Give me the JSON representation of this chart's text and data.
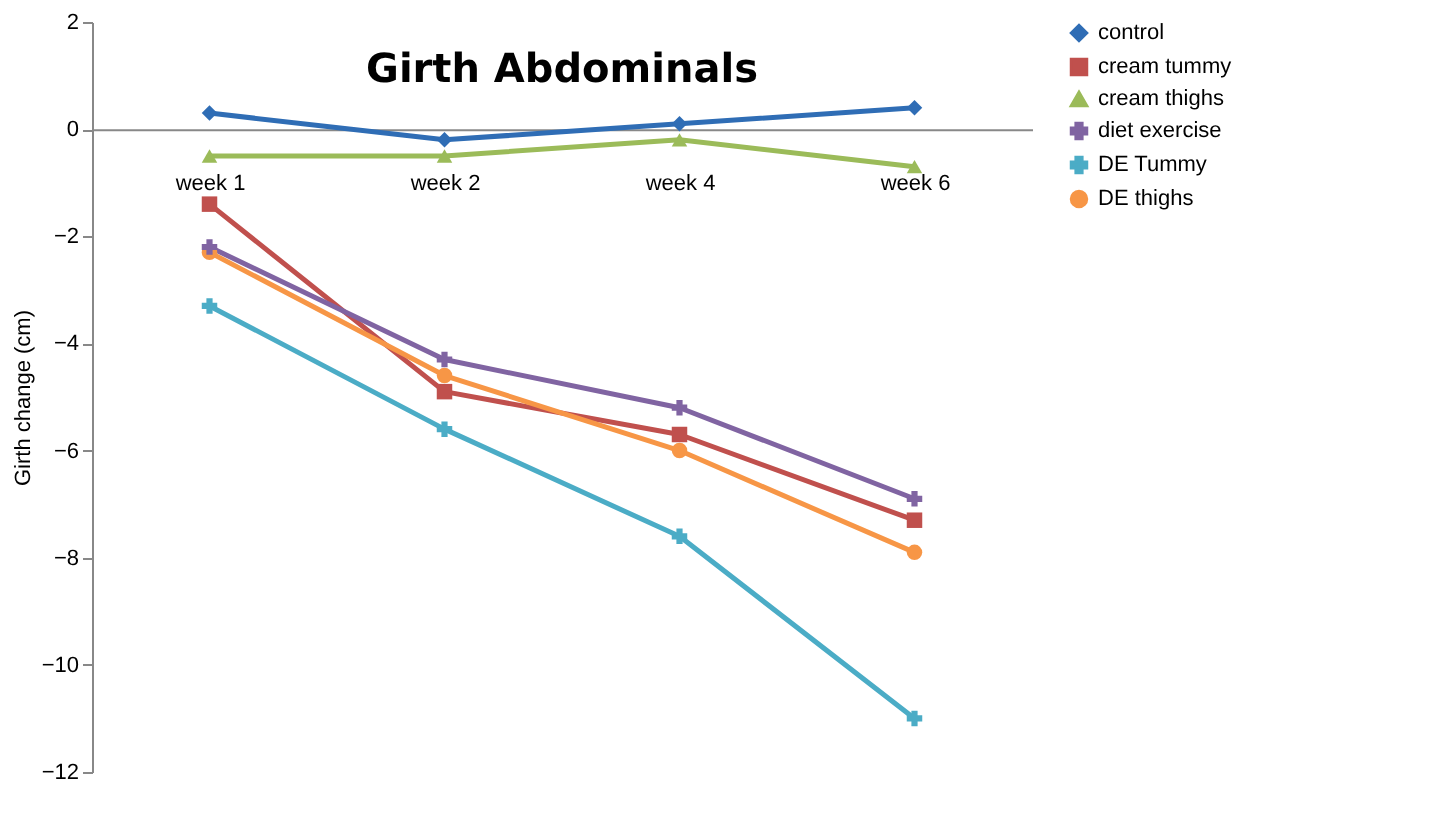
{
  "chart_data": {
    "type": "line",
    "title": "Girth Abdominals",
    "ylabel": "Girth change (cm)",
    "categories": [
      "week 1",
      "week 2",
      "week 4",
      "week 6"
    ],
    "series": [
      {
        "name": "control",
        "color": "#2f6db5",
        "marker": "diamond",
        "values": [
          0.3,
          -0.2,
          0.1,
          0.4
        ]
      },
      {
        "name": "cream tummy",
        "color": "#c0504d",
        "marker": "square",
        "values": [
          -1.4,
          -4.9,
          -5.7,
          -7.3
        ]
      },
      {
        "name": "cream thighs",
        "color": "#9bbb59",
        "marker": "triangle",
        "values": [
          -0.5,
          -0.5,
          -0.2,
          -0.7
        ]
      },
      {
        "name": "diet exercise",
        "color": "#8064a2",
        "marker": "cross",
        "values": [
          -2.2,
          -4.3,
          -5.2,
          -6.9
        ]
      },
      {
        "name": "DE Tummy",
        "color": "#4bacc6",
        "marker": "cross",
        "values": [
          -3.3,
          -5.6,
          -7.6,
          -11.0
        ]
      },
      {
        "name": "DE thighs",
        "color": "#f79646",
        "marker": "circle",
        "values": [
          -2.3,
          -4.6,
          -6.0,
          -7.9
        ]
      }
    ],
    "ylim": [
      -12,
      2
    ],
    "yticks": [
      -12,
      -10,
      -8,
      -6,
      -4,
      -2,
      0,
      2
    ],
    "grid": false,
    "legend": "right"
  }
}
